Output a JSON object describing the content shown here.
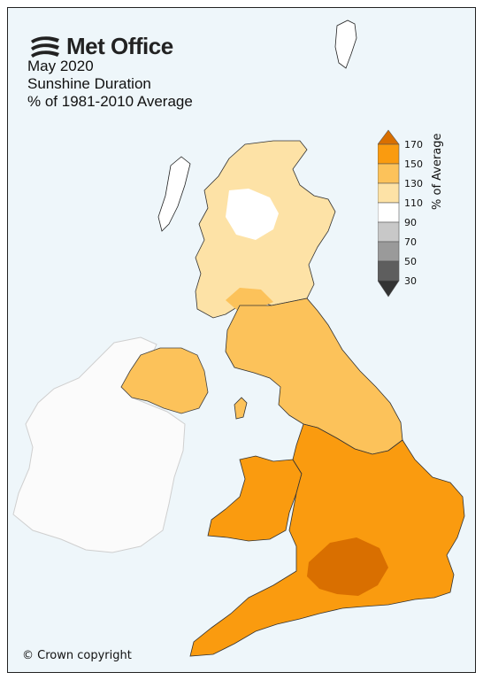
{
  "brand": {
    "name": "Met Office",
    "logo_icon": "met-office-swoosh-icon"
  },
  "title": {
    "line1": "May 2020",
    "line2": "Sunshine Duration",
    "line3": "% of 1981-2010 Average"
  },
  "legend": {
    "label": "% of Average",
    "ticks": [
      "170",
      "150",
      "130",
      "110",
      "90",
      "70",
      "50",
      "30"
    ],
    "bins": [
      {
        "range": ">170",
        "color": "#d96f00"
      },
      {
        "range": "150-170",
        "color": "#fa9b0f"
      },
      {
        "range": "130-150",
        "color": "#fcc25a"
      },
      {
        "range": "110-130",
        "color": "#fde2a6"
      },
      {
        "range": "90-110",
        "color": "#ffffff"
      },
      {
        "range": "70-90",
        "color": "#c8c8c8"
      },
      {
        "range": "50-70",
        "color": "#9a9a9a"
      },
      {
        "range": "30-50",
        "color": "#5e5e5e"
      },
      {
        "range": "<30",
        "color": "#333333"
      }
    ]
  },
  "colors": {
    "background": "#eef6fa",
    "ireland": "#fbfbfb",
    "scotland_north": "#fde2a6",
    "england_north": "#fcc25a",
    "england_south": "#fa9b0f",
    "england_peak": "#d96f00"
  },
  "copyright": "© Crown copyright"
}
